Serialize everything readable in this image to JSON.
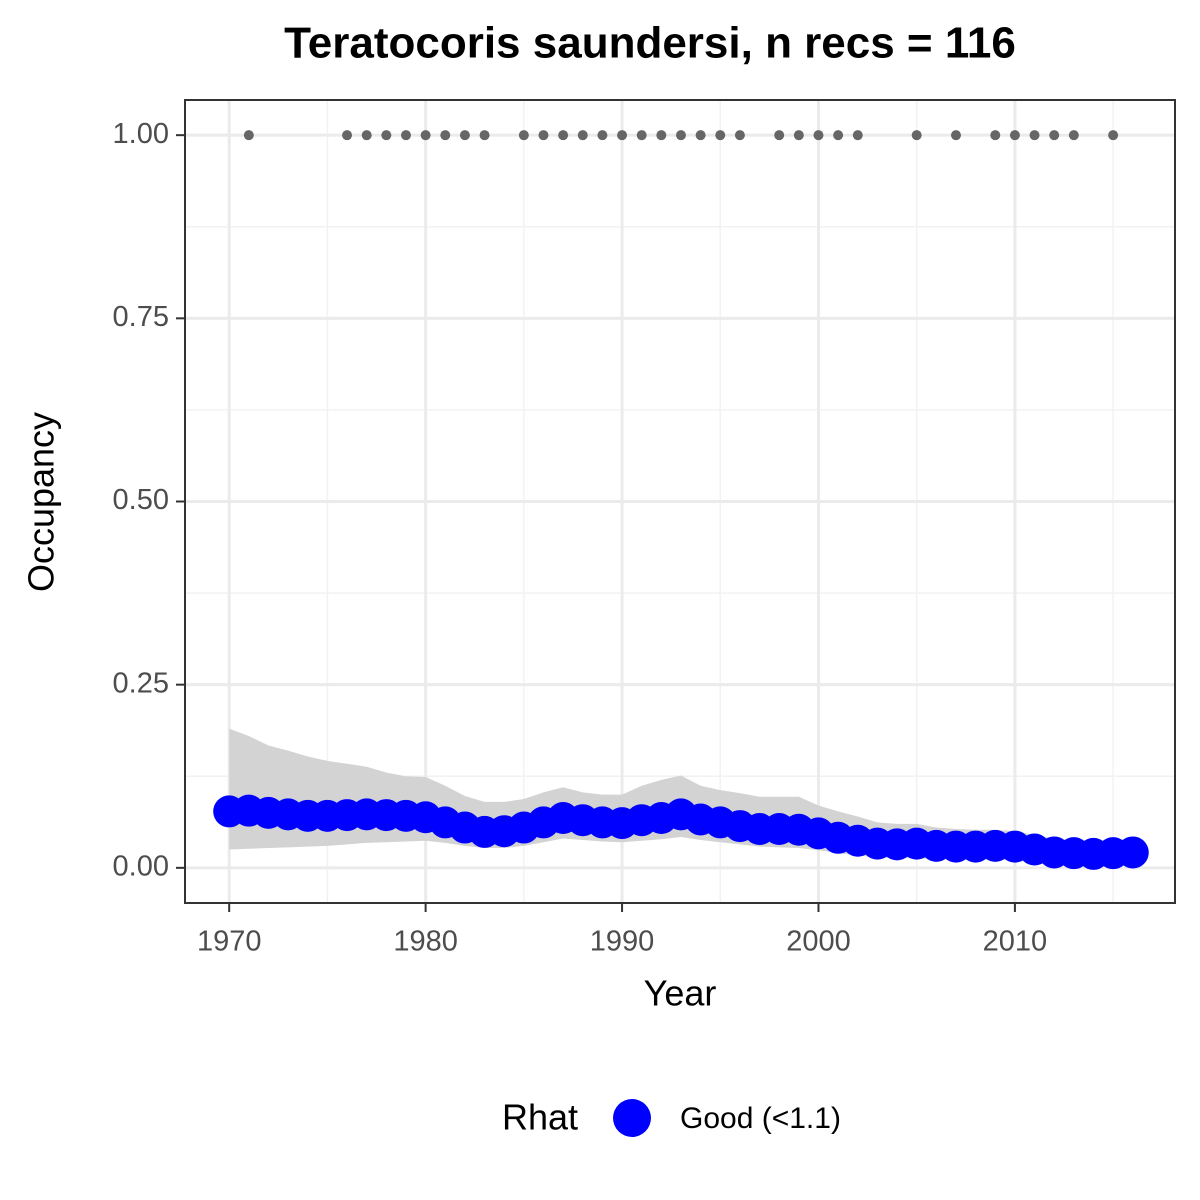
{
  "chart_data": {
    "type": "line",
    "title": "Teratocoris saundersi, n recs = 116",
    "x_label": "Year",
    "y_label": "Occupancy",
    "legend_title": "Rhat",
    "legend_position": "bottom",
    "grid": true,
    "xlim": [
      1967.75,
      2018.15
    ],
    "ylim": [
      -0.048,
      1.048
    ],
    "xticks": [
      1970,
      1980,
      1990,
      2000,
      2010
    ],
    "x_minor_ticks": [
      1975,
      1985,
      1995,
      2005,
      2015
    ],
    "yticks": [
      {
        "value": 0,
        "label": "0.00"
      },
      {
        "value": 0.25,
        "label": "0.25"
      },
      {
        "value": 0.5,
        "label": "0.50"
      },
      {
        "value": 0.75,
        "label": "0.75"
      },
      {
        "value": 1,
        "label": "1.00"
      }
    ],
    "y_minor_ticks": [
      0.125,
      0.375,
      0.625,
      0.875
    ],
    "ribbon_color": "#d3d3d3",
    "x": [
      1970,
      1971,
      1972,
      1973,
      1974,
      1975,
      1976,
      1977,
      1978,
      1979,
      1980,
      1981,
      1982,
      1983,
      1984,
      1985,
      1986,
      1987,
      1988,
      1989,
      1990,
      1991,
      1992,
      1993,
      1994,
      1995,
      1996,
      1997,
      1998,
      1999,
      2000,
      2001,
      2002,
      2003,
      2004,
      2005,
      2006,
      2007,
      2008,
      2009,
      2010,
      2011,
      2012,
      2013,
      2014,
      2015,
      2016
    ],
    "series": [
      {
        "name": "Good (<1.1)",
        "color": "#0000ff",
        "values": [
          0.077,
          0.078,
          0.075,
          0.073,
          0.071,
          0.071,
          0.072,
          0.073,
          0.072,
          0.071,
          0.069,
          0.062,
          0.055,
          0.049,
          0.05,
          0.055,
          0.062,
          0.068,
          0.065,
          0.062,
          0.061,
          0.065,
          0.068,
          0.073,
          0.066,
          0.062,
          0.057,
          0.053,
          0.053,
          0.052,
          0.047,
          0.041,
          0.037,
          0.033,
          0.032,
          0.033,
          0.03,
          0.029,
          0.029,
          0.03,
          0.029,
          0.025,
          0.021,
          0.02,
          0.019,
          0.02,
          0.021
        ],
        "upper": [
          0.19,
          0.18,
          0.167,
          0.16,
          0.152,
          0.146,
          0.142,
          0.138,
          0.13,
          0.125,
          0.124,
          0.112,
          0.098,
          0.09,
          0.09,
          0.094,
          0.103,
          0.11,
          0.103,
          0.1,
          0.1,
          0.112,
          0.12,
          0.126,
          0.112,
          0.106,
          0.102,
          0.097,
          0.097,
          0.097,
          0.085,
          0.077,
          0.07,
          0.062,
          0.06,
          0.06,
          0.055,
          0.053,
          0.052,
          0.052,
          0.05,
          0.045,
          0.04,
          0.038,
          0.037,
          0.038,
          0.04
        ],
        "lower": [
          0.025,
          0.026,
          0.027,
          0.028,
          0.029,
          0.03,
          0.032,
          0.034,
          0.035,
          0.036,
          0.037,
          0.034,
          0.03,
          0.027,
          0.027,
          0.03,
          0.035,
          0.04,
          0.038,
          0.036,
          0.035,
          0.037,
          0.039,
          0.042,
          0.038,
          0.035,
          0.032,
          0.029,
          0.028,
          0.027,
          0.024,
          0.02,
          0.017,
          0.014,
          0.013,
          0.013,
          0.012,
          0.011,
          0.011,
          0.011,
          0.01,
          0.008,
          0.006,
          0.005,
          0.005,
          0.005,
          0.005
        ]
      }
    ],
    "records": {
      "color": "#666666",
      "x": [
        1971,
        1976,
        1977,
        1978,
        1979,
        1980,
        1981,
        1982,
        1983,
        1985,
        1986,
        1987,
        1988,
        1989,
        1990,
        1991,
        1992,
        1993,
        1994,
        1995,
        1996,
        1998,
        1999,
        2000,
        2001,
        2002,
        2005,
        2007,
        2009,
        2010,
        2011,
        2012,
        2013,
        2015
      ],
      "values": [
        1,
        1,
        1,
        1,
        1,
        1,
        1,
        1,
        1,
        1,
        1,
        1,
        1,
        1,
        1,
        1,
        1,
        1,
        1,
        1,
        1,
        1,
        1,
        1,
        1,
        1,
        1,
        1,
        1,
        1,
        1,
        1,
        1,
        1
      ]
    }
  }
}
